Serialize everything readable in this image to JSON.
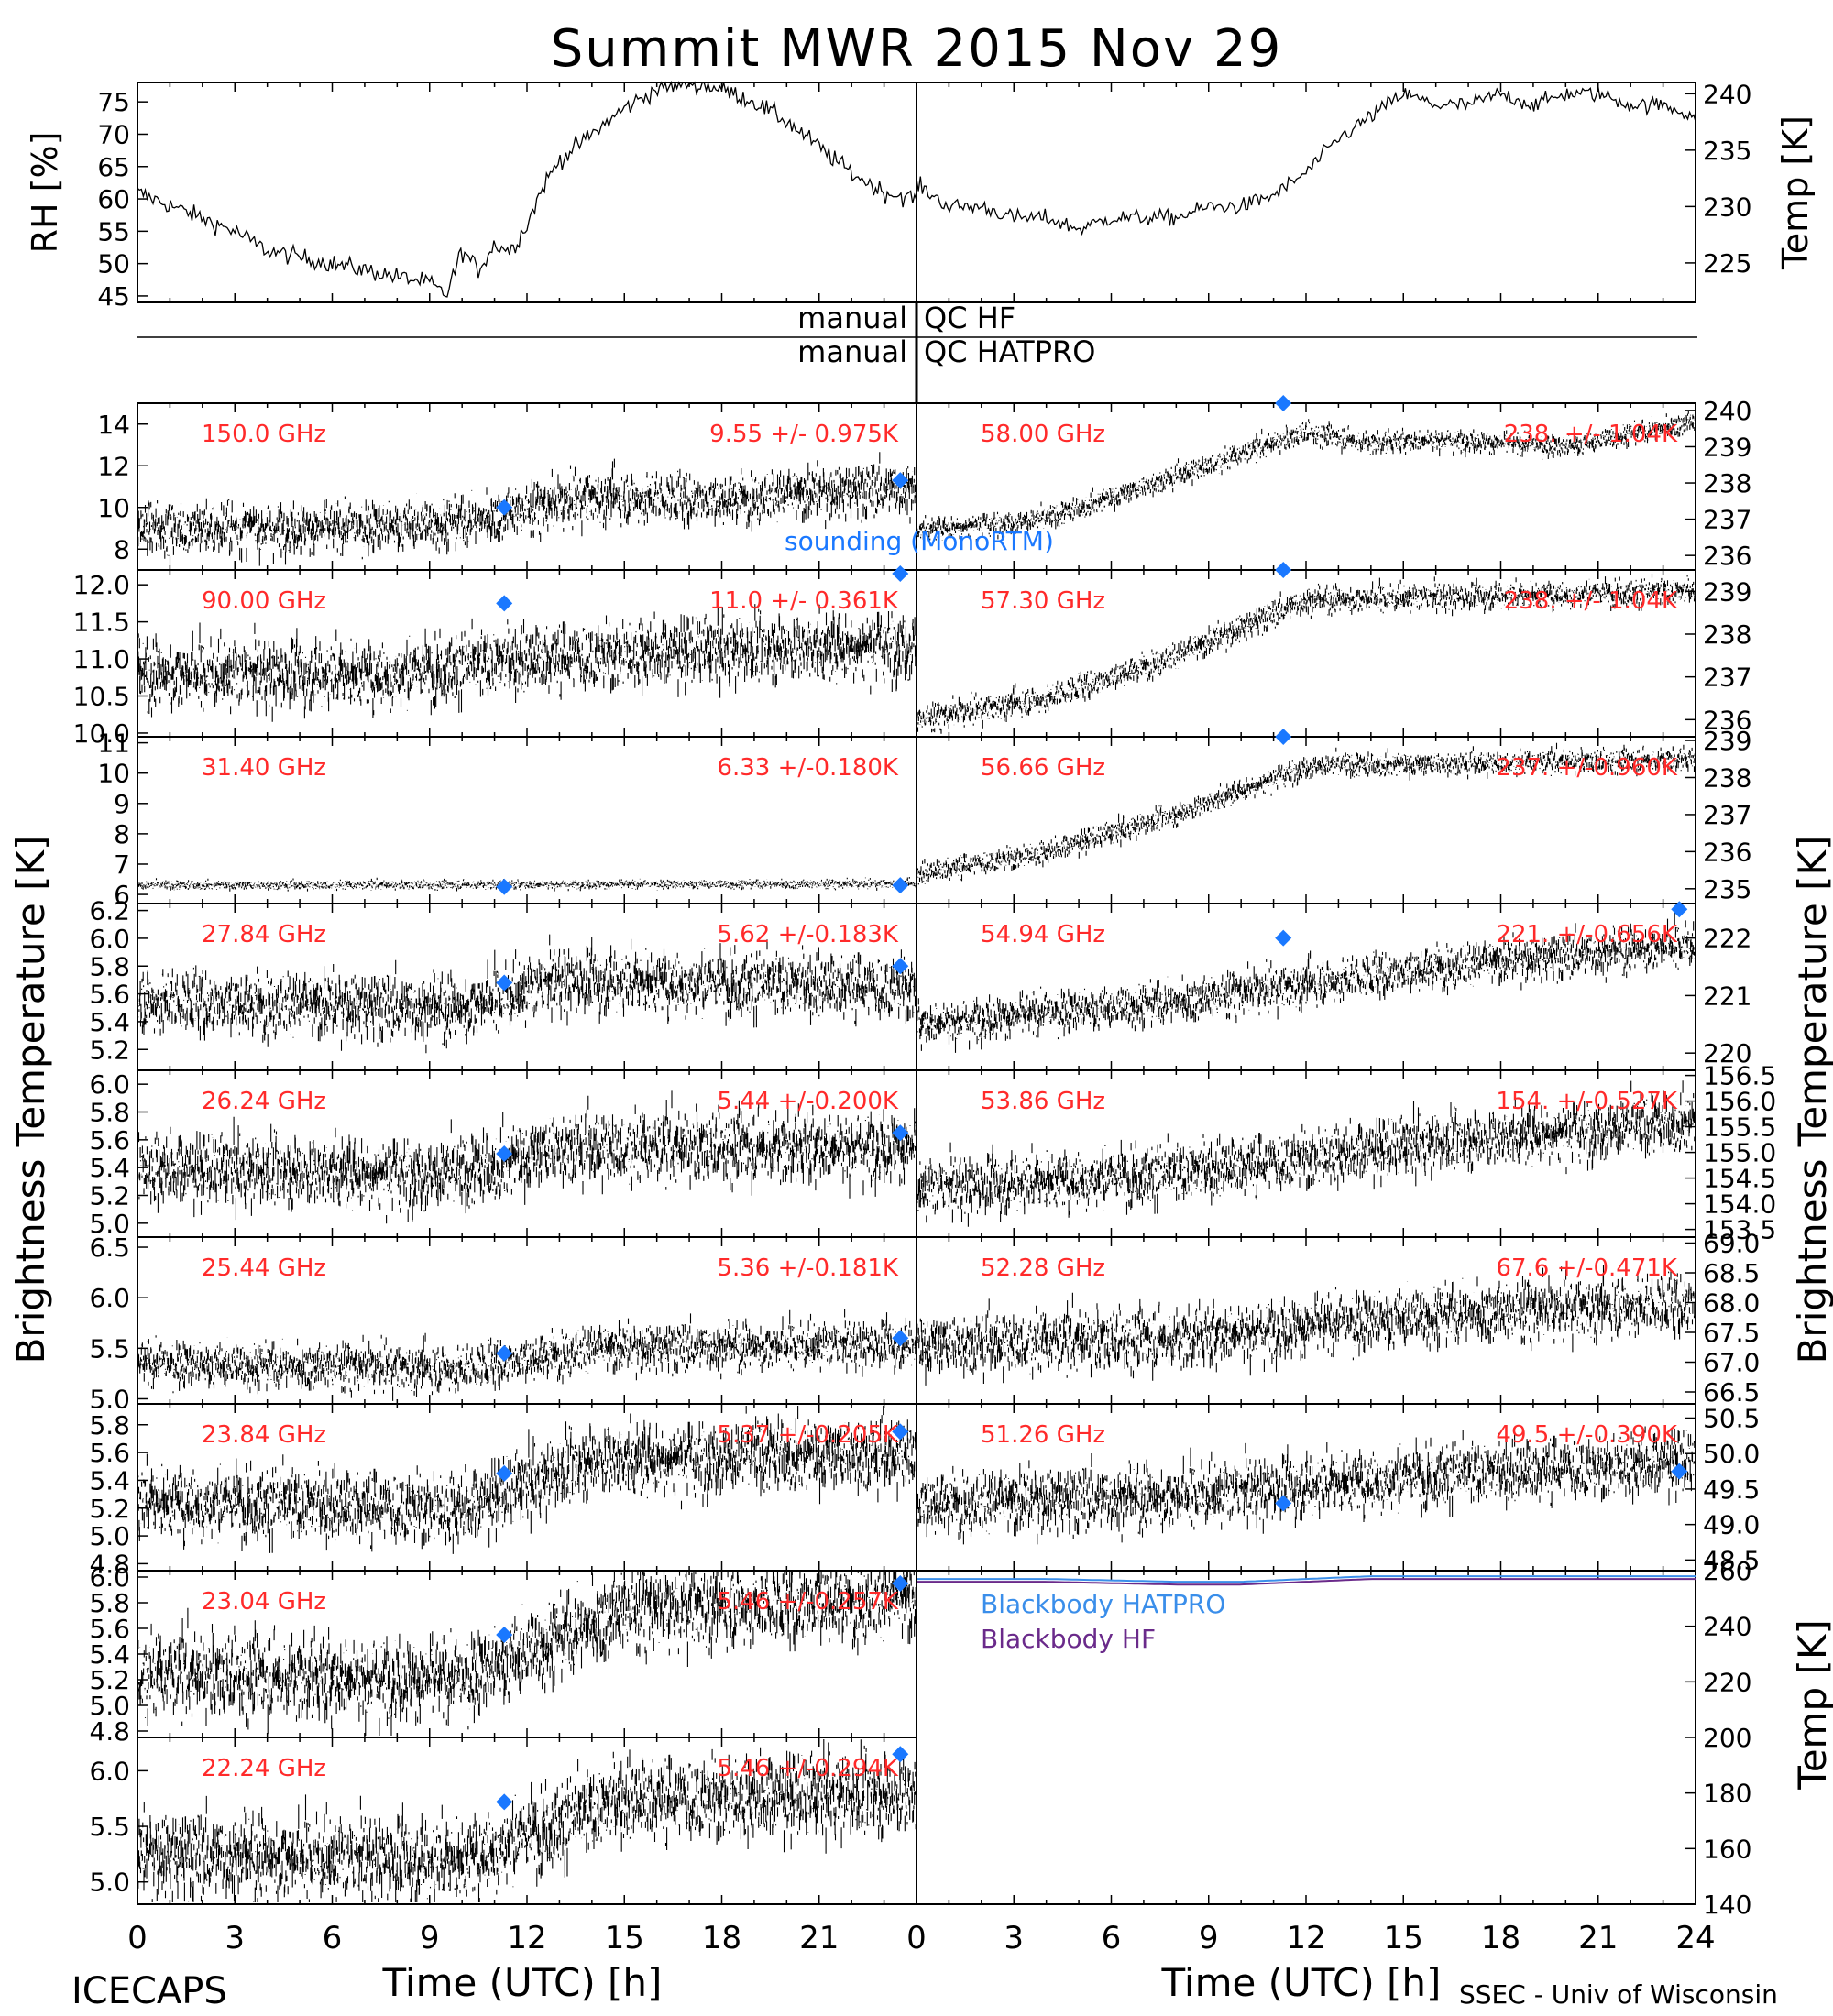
{
  "title": "Summit MWR 2015 Nov 29",
  "colors": {
    "label": "#ff2a2a",
    "sounding": "#1a78ff",
    "bb_hatpro": "#3a8eea",
    "bb_hf": "#6a2a8a",
    "trace": "#000000"
  },
  "qc": {
    "line1": "manual",
    "line1b": "QC HF",
    "line2": "manual",
    "line2b": "QC HATPRO"
  },
  "axes": {
    "left_big": "Brightness Temperature [K]",
    "right_big": "Brightness Temperature [K]",
    "rh_label": "RH [%]",
    "temp_label": "Temp [K]",
    "bb_temp_label": "Temp [K]",
    "x_label_left": "Time (UTC) [h]",
    "x_label_right": "Time (UTC) [h]",
    "x_ticks_left": [
      "0",
      "3",
      "6",
      "9",
      "12",
      "15",
      "18",
      "21"
    ],
    "x_ticks_right": [
      "0",
      "3",
      "6",
      "9",
      "12",
      "15",
      "18",
      "21",
      "24"
    ]
  },
  "footer": {
    "left": "ICECAPS",
    "right": "SSEC - Univ of Wisconsin"
  },
  "sounding_label": "sounding (MonoRTM)",
  "chart_data": [
    {
      "type": "line",
      "id": "rh",
      "ylabel": "RH [%]",
      "xlim": [
        0,
        24
      ],
      "ylim": [
        44,
        78
      ],
      "yticks": [
        "45",
        "50",
        "55",
        "60",
        "65",
        "70",
        "75"
      ],
      "x": [
        0,
        1,
        2,
        3,
        4,
        5,
        6,
        7,
        8,
        9,
        9.5,
        10,
        10.5,
        11,
        11.5,
        12,
        12.5,
        13,
        14,
        15,
        16,
        17,
        18,
        19,
        20,
        21,
        22,
        23,
        24
      ],
      "y": [
        61,
        59,
        57,
        55,
        52,
        51,
        50,
        49,
        48,
        47,
        45,
        52,
        49,
        53,
        52,
        56,
        62,
        66,
        70,
        74,
        77,
        78,
        77,
        75,
        72,
        68,
        64,
        61,
        60
      ]
    },
    {
      "type": "line",
      "id": "temp",
      "ylabel": "Temp [K]",
      "ylim": [
        221.5,
        241
      ],
      "yticks": [
        "225",
        "230",
        "235",
        "240"
      ],
      "x": [
        0,
        1,
        2,
        3,
        4,
        5,
        6,
        7,
        8,
        9,
        10,
        11,
        12,
        13,
        14,
        15,
        16,
        17,
        18,
        19,
        20,
        21,
        22,
        23,
        24
      ],
      "y": [
        232,
        230,
        230,
        229,
        229,
        228,
        229,
        229,
        229,
        230,
        230,
        231,
        233,
        236,
        238,
        240,
        239,
        239,
        240,
        239,
        240,
        240,
        239,
        239,
        238
      ]
    },
    {
      "type": "line",
      "id": "bb",
      "ylabel": "Temp [K]",
      "ylim": [
        140,
        260
      ],
      "yticks": [
        "140",
        "160",
        "180",
        "200",
        "220",
        "240",
        "260"
      ],
      "series": [
        {
          "name": "Blackbody HATPRO",
          "x": [
            0,
            4,
            8,
            10,
            12,
            14,
            16,
            20,
            24
          ],
          "y": [
            257,
            257,
            256,
            256,
            257,
            258,
            258,
            258,
            258
          ]
        },
        {
          "name": "Blackbody HF",
          "x": [
            0,
            4,
            8,
            10,
            12,
            14,
            16,
            20,
            24
          ],
          "y": [
            256,
            256,
            255,
            255,
            256,
            257,
            257,
            257,
            257
          ]
        }
      ]
    },
    {
      "type": "scatter",
      "side": "left",
      "label": "150.0 GHz",
      "stat": "9.55 +/- 0.975K",
      "ylim": [
        7,
        15
      ],
      "yticks": [
        {
          "v": 8,
          "t": "8"
        },
        {
          "v": 10,
          "t": "10"
        },
        {
          "v": 12,
          "t": "12"
        },
        {
          "v": 14,
          "t": "14"
        }
      ],
      "trend": [
        [
          0,
          9
        ],
        [
          6,
          9
        ],
        [
          10,
          9.3
        ],
        [
          14,
          10.5
        ],
        [
          18,
          10.4
        ],
        [
          24,
          11
        ]
      ],
      "noise": 0.975,
      "sounding": [
        [
          11.3,
          10.0
        ],
        [
          23.5,
          11.3
        ]
      ]
    },
    {
      "type": "scatter",
      "side": "left",
      "label": "90.00 GHz",
      "stat": "11.0 +/- 0.361K",
      "ylim": [
        9.95,
        12.2
      ],
      "yticks": [
        {
          "v": 10.0,
          "t": "10.0"
        },
        {
          "v": 10.5,
          "t": "10.5"
        },
        {
          "v": 11.0,
          "t": "11.0"
        },
        {
          "v": 11.5,
          "t": "11.5"
        },
        {
          "v": 12.0,
          "t": "12.0"
        }
      ],
      "trend": [
        [
          0,
          10.8
        ],
        [
          8,
          10.8
        ],
        [
          12,
          11.0
        ],
        [
          16,
          11.1
        ],
        [
          24,
          11.2
        ]
      ],
      "noise": 0.361,
      "sounding": [
        [
          11.3,
          11.75
        ],
        [
          23.5,
          12.15
        ]
      ]
    },
    {
      "type": "scatter",
      "side": "left",
      "label": "31.40 GHz",
      "stat": "6.33 +/-0.180K",
      "ylim": [
        5.7,
        11.2
      ],
      "yticks": [
        {
          "v": 6,
          "t": "6"
        },
        {
          "v": 7,
          "t": "7"
        },
        {
          "v": 8,
          "t": "8"
        },
        {
          "v": 9,
          "t": "9"
        },
        {
          "v": 10,
          "t": "10"
        },
        {
          "v": 11,
          "t": "11"
        }
      ],
      "trend": [
        [
          0,
          6.3
        ],
        [
          24,
          6.35
        ]
      ],
      "noise": 0.12,
      "sounding": [
        [
          11.3,
          6.25
        ],
        [
          23.5,
          6.3
        ]
      ]
    },
    {
      "type": "scatter",
      "side": "left",
      "label": "27.84 GHz",
      "stat": "5.62 +/-0.183K",
      "ylim": [
        5.05,
        6.25
      ],
      "yticks": [
        {
          "v": 5.2,
          "t": "5.2"
        },
        {
          "v": 5.4,
          "t": "5.4"
        },
        {
          "v": 5.6,
          "t": "5.6"
        },
        {
          "v": 5.8,
          "t": "5.8"
        },
        {
          "v": 6.0,
          "t": "6.0"
        },
        {
          "v": 6.2,
          "t": "6.2"
        }
      ],
      "trend": [
        [
          0,
          5.55
        ],
        [
          10,
          5.5
        ],
        [
          13,
          5.7
        ],
        [
          24,
          5.65
        ]
      ],
      "noise": 0.183,
      "sounding": [
        [
          11.3,
          5.68
        ],
        [
          23.5,
          5.8
        ]
      ]
    },
    {
      "type": "scatter",
      "side": "left",
      "label": "26.24 GHz",
      "stat": "5.44 +/-0.200K",
      "ylim": [
        4.9,
        6.1
      ],
      "yticks": [
        {
          "v": 5.0,
          "t": "5.0"
        },
        {
          "v": 5.2,
          "t": "5.2"
        },
        {
          "v": 5.4,
          "t": "5.4"
        },
        {
          "v": 5.6,
          "t": "5.6"
        },
        {
          "v": 5.8,
          "t": "5.8"
        },
        {
          "v": 6.0,
          "t": "6.0"
        }
      ],
      "trend": [
        [
          0,
          5.4
        ],
        [
          10,
          5.35
        ],
        [
          13,
          5.55
        ],
        [
          24,
          5.55
        ]
      ],
      "noise": 0.2,
      "sounding": [
        [
          11.3,
          5.5
        ],
        [
          23.5,
          5.65
        ]
      ]
    },
    {
      "type": "scatter",
      "side": "left",
      "label": "25.44 GHz",
      "stat": "5.36 +/-0.181K",
      "ylim": [
        4.95,
        6.6
      ],
      "yticks": [
        {
          "v": 5.0,
          "t": "5.0"
        },
        {
          "v": 5.5,
          "t": "5.5"
        },
        {
          "v": 6.0,
          "t": "6.0"
        },
        {
          "v": 6.5,
          "t": "6.5"
        }
      ],
      "trend": [
        [
          0,
          5.35
        ],
        [
          10,
          5.3
        ],
        [
          14,
          5.5
        ],
        [
          24,
          5.55
        ]
      ],
      "noise": 0.181,
      "sounding": [
        [
          11.3,
          5.45
        ],
        [
          23.5,
          5.6
        ]
      ]
    },
    {
      "type": "scatter",
      "side": "left",
      "label": "23.84 GHz",
      "stat": "5.37 +/-0.205K",
      "ylim": [
        4.75,
        5.95
      ],
      "yticks": [
        {
          "v": 4.8,
          "t": "4.8"
        },
        {
          "v": 5.0,
          "t": "5.0"
        },
        {
          "v": 5.2,
          "t": "5.2"
        },
        {
          "v": 5.4,
          "t": "5.4"
        },
        {
          "v": 5.6,
          "t": "5.6"
        },
        {
          "v": 5.8,
          "t": "5.8"
        }
      ],
      "trend": [
        [
          0,
          5.25
        ],
        [
          10,
          5.2
        ],
        [
          14,
          5.55
        ],
        [
          24,
          5.6
        ]
      ],
      "noise": 0.205,
      "sounding": [
        [
          11.3,
          5.45
        ],
        [
          23.5,
          5.75
        ]
      ]
    },
    {
      "type": "scatter",
      "side": "left",
      "label": "23.04 GHz",
      "stat": "5.46 +/-0.257K",
      "ylim": [
        4.75,
        6.05
      ],
      "yticks": [
        {
          "v": 4.8,
          "t": "4.8"
        },
        {
          "v": 5.0,
          "t": "5.0"
        },
        {
          "v": 5.2,
          "t": "5.2"
        },
        {
          "v": 5.4,
          "t": "5.4"
        },
        {
          "v": 5.6,
          "t": "5.6"
        },
        {
          "v": 5.8,
          "t": "5.8"
        },
        {
          "v": 6.0,
          "t": "6.0"
        }
      ],
      "trend": [
        [
          0,
          5.25
        ],
        [
          10,
          5.2
        ],
        [
          15,
          5.75
        ],
        [
          24,
          5.85
        ]
      ],
      "noise": 0.257,
      "sounding": [
        [
          11.3,
          5.55
        ],
        [
          23.5,
          5.95
        ]
      ]
    },
    {
      "type": "scatter",
      "side": "left",
      "label": "22.24 GHz",
      "stat": "5.46 +/-0.294K",
      "ylim": [
        4.8,
        6.3
      ],
      "yticks": [
        {
          "v": 5.0,
          "t": "5.0"
        },
        {
          "v": 5.5,
          "t": "5.5"
        },
        {
          "v": 6.0,
          "t": "6.0"
        }
      ],
      "trend": [
        [
          0,
          5.25
        ],
        [
          10,
          5.2
        ],
        [
          15,
          5.75
        ],
        [
          24,
          5.8
        ]
      ],
      "noise": 0.294,
      "sounding": [
        [
          11.3,
          5.72
        ],
        [
          23.5,
          6.15
        ]
      ]
    },
    {
      "type": "scatter",
      "side": "right",
      "label": "58.00 GHz",
      "stat": "238. +/- 1.04K",
      "ylim": [
        235.6,
        240.2
      ],
      "yticks": [
        {
          "v": 236,
          "t": "236"
        },
        {
          "v": 237,
          "t": "237"
        },
        {
          "v": 238,
          "t": "238"
        },
        {
          "v": 239,
          "t": "239"
        },
        {
          "v": 240,
          "t": "240"
        }
      ],
      "trend": [
        [
          0,
          236.7
        ],
        [
          4,
          237.0
        ],
        [
          8,
          238.2
        ],
        [
          12,
          239.4
        ],
        [
          14,
          239.1
        ],
        [
          16,
          239.2
        ],
        [
          20,
          239.0
        ],
        [
          24,
          239.7
        ]
      ],
      "noise": 0.25,
      "sounding": [
        [
          11.3,
          240.2
        ]
      ]
    },
    {
      "type": "scatter",
      "side": "right",
      "label": "57.30 GHz",
      "stat": "238. +/- 1.04K",
      "ylim": [
        235.6,
        239.5
      ],
      "yticks": [
        {
          "v": 236,
          "t": "236"
        },
        {
          "v": 237,
          "t": "237"
        },
        {
          "v": 238,
          "t": "238"
        },
        {
          "v": 239,
          "t": "239"
        }
      ],
      "trend": [
        [
          0,
          236.0
        ],
        [
          4,
          236.5
        ],
        [
          8,
          237.5
        ],
        [
          12,
          238.8
        ],
        [
          24,
          239.0
        ]
      ],
      "noise": 0.25,
      "sounding": [
        [
          11.3,
          239.5
        ]
      ]
    },
    {
      "type": "scatter",
      "side": "right",
      "label": "56.66 GHz",
      "stat": "237. +/-0.960K",
      "ylim": [
        234.6,
        239.1
      ],
      "yticks": [
        {
          "v": 235,
          "t": "235"
        },
        {
          "v": 236,
          "t": "236"
        },
        {
          "v": 237,
          "t": "237"
        },
        {
          "v": 238,
          "t": "238"
        },
        {
          "v": 239,
          "t": "239"
        }
      ],
      "trend": [
        [
          0,
          235.4
        ],
        [
          4,
          236.0
        ],
        [
          8,
          237.0
        ],
        [
          12,
          238.3
        ],
        [
          24,
          238.5
        ]
      ],
      "noise": 0.25,
      "sounding": [
        [
          11.3,
          239.1
        ]
      ]
    },
    {
      "type": "scatter",
      "side": "right",
      "label": "54.94 GHz",
      "stat": "221. +/-0.656K",
      "ylim": [
        219.7,
        222.6
      ],
      "yticks": [
        {
          "v": 220,
          "t": "220"
        },
        {
          "v": 221,
          "t": "221"
        },
        {
          "v": 222,
          "t": "222"
        }
      ],
      "trend": [
        [
          0,
          220.5
        ],
        [
          8,
          220.9
        ],
        [
          16,
          221.5
        ],
        [
          24,
          221.9
        ]
      ],
      "noise": 0.3,
      "sounding": [
        [
          11.3,
          222.0
        ],
        [
          23.5,
          222.5
        ]
      ]
    },
    {
      "type": "scatter",
      "side": "right",
      "label": "53.86 GHz",
      "stat": "154. +/-0.527K",
      "ylim": [
        153.35,
        156.6
      ],
      "yticks": [
        {
          "v": 153.5,
          "t": "153.5"
        },
        {
          "v": 154.0,
          "t": "154.0"
        },
        {
          "v": 154.5,
          "t": "154.5"
        },
        {
          "v": 155.0,
          "t": "155.0"
        },
        {
          "v": 155.5,
          "t": "155.5"
        },
        {
          "v": 156.0,
          "t": "156.0"
        },
        {
          "v": 156.5,
          "t": "156.5"
        }
      ],
      "trend": [
        [
          0,
          154.3
        ],
        [
          8,
          154.6
        ],
        [
          16,
          155.2
        ],
        [
          24,
          155.6
        ]
      ],
      "noise": 0.45,
      "sounding": []
    },
    {
      "type": "scatter",
      "side": "right",
      "label": "52.28 GHz",
      "stat": "67.6 +/-0.471K",
      "ylim": [
        66.3,
        69.1
      ],
      "yticks": [
        {
          "v": 66.5,
          "t": "66.5"
        },
        {
          "v": 67.0,
          "t": "67.0"
        },
        {
          "v": 67.5,
          "t": "67.5"
        },
        {
          "v": 68.0,
          "t": "68.0"
        },
        {
          "v": 68.5,
          "t": "68.5"
        },
        {
          "v": 69.0,
          "t": "69.0"
        }
      ],
      "trend": [
        [
          0,
          67.3
        ],
        [
          8,
          67.4
        ],
        [
          16,
          67.8
        ],
        [
          24,
          68.0
        ]
      ],
      "noise": 0.4,
      "sounding": []
    },
    {
      "type": "scatter",
      "side": "right",
      "label": "51.26 GHz",
      "stat": "49.5 +/-0.390K",
      "ylim": [
        48.35,
        50.7
      ],
      "yticks": [
        {
          "v": 48.5,
          "t": "48.5"
        },
        {
          "v": 49.0,
          "t": "49.0"
        },
        {
          "v": 49.5,
          "t": "49.5"
        },
        {
          "v": 50.0,
          "t": "50.0"
        },
        {
          "v": 50.5,
          "t": "50.5"
        }
      ],
      "trend": [
        [
          0,
          49.3
        ],
        [
          8,
          49.4
        ],
        [
          16,
          49.7
        ],
        [
          24,
          49.9
        ]
      ],
      "noise": 0.35,
      "sounding": [
        [
          11.3,
          49.3
        ],
        [
          23.5,
          49.75
        ]
      ]
    }
  ]
}
